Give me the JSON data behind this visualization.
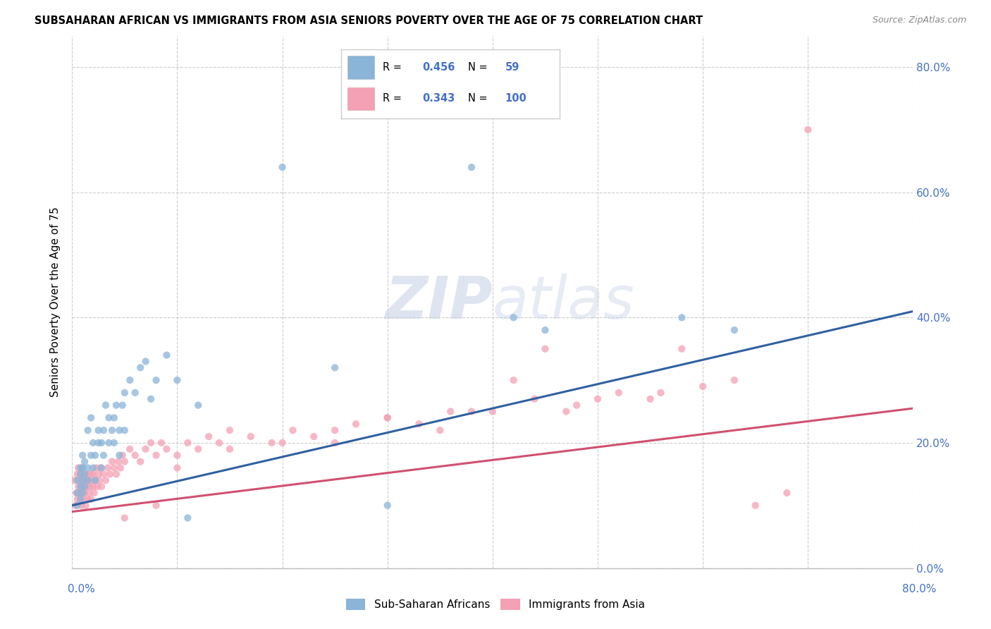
{
  "title": "SUBSAHARAN AFRICAN VS IMMIGRANTS FROM ASIA SENIORS POVERTY OVER THE AGE OF 75 CORRELATION CHART",
  "source": "Source: ZipAtlas.com",
  "ylabel": "Seniors Poverty Over the Age of 75",
  "xmin": 0.0,
  "xmax": 0.8,
  "ymin": 0.0,
  "ymax": 0.85,
  "ytick_vals": [
    0.0,
    0.2,
    0.4,
    0.6,
    0.8
  ],
  "ytick_labels": [
    "0.0%",
    "20.0%",
    "40.0%",
    "60.0%",
    "80.0%"
  ],
  "blue_R": 0.456,
  "blue_N": 59,
  "pink_R": 0.343,
  "pink_N": 100,
  "blue_color": "#8ab4d8",
  "pink_color": "#f4a0b5",
  "blue_line_color": "#3060a0",
  "pink_line_color": "#d05070",
  "watermark_zip": "ZIP",
  "watermark_atlas": "atlas",
  "legend_label_blue": "Sub-Saharan Africans",
  "legend_label_pink": "Immigrants from Asia",
  "blue_line_x0": 0.0,
  "blue_line_y0": 0.1,
  "blue_line_x1": 0.8,
  "blue_line_y1": 0.41,
  "pink_line_x0": 0.0,
  "pink_line_y0": 0.09,
  "pink_line_x1": 0.8,
  "pink_line_y1": 0.255,
  "blue_scatter_x": [
    0.005,
    0.005,
    0.005,
    0.008,
    0.008,
    0.008,
    0.008,
    0.01,
    0.01,
    0.01,
    0.01,
    0.012,
    0.012,
    0.012,
    0.015,
    0.015,
    0.015,
    0.018,
    0.018,
    0.02,
    0.02,
    0.022,
    0.022,
    0.025,
    0.025,
    0.028,
    0.028,
    0.03,
    0.03,
    0.032,
    0.035,
    0.035,
    0.038,
    0.04,
    0.04,
    0.042,
    0.045,
    0.045,
    0.048,
    0.05,
    0.05,
    0.055,
    0.06,
    0.065,
    0.07,
    0.075,
    0.08,
    0.09,
    0.1,
    0.11,
    0.12,
    0.2,
    0.25,
    0.3,
    0.38,
    0.42,
    0.45,
    0.58,
    0.63
  ],
  "blue_scatter_y": [
    0.14,
    0.12,
    0.1,
    0.16,
    0.13,
    0.11,
    0.15,
    0.14,
    0.16,
    0.12,
    0.18,
    0.15,
    0.13,
    0.17,
    0.16,
    0.22,
    0.14,
    0.18,
    0.24,
    0.16,
    0.2,
    0.18,
    0.14,
    0.22,
    0.2,
    0.2,
    0.16,
    0.22,
    0.18,
    0.26,
    0.2,
    0.24,
    0.22,
    0.24,
    0.2,
    0.26,
    0.22,
    0.18,
    0.26,
    0.22,
    0.28,
    0.3,
    0.28,
    0.32,
    0.33,
    0.27,
    0.3,
    0.34,
    0.3,
    0.08,
    0.26,
    0.64,
    0.32,
    0.1,
    0.64,
    0.4,
    0.38,
    0.4,
    0.38
  ],
  "pink_scatter_x": [
    0.002,
    0.003,
    0.004,
    0.005,
    0.005,
    0.006,
    0.006,
    0.007,
    0.007,
    0.008,
    0.008,
    0.009,
    0.009,
    0.01,
    0.01,
    0.01,
    0.011,
    0.011,
    0.012,
    0.012,
    0.013,
    0.013,
    0.014,
    0.015,
    0.015,
    0.016,
    0.016,
    0.017,
    0.018,
    0.018,
    0.019,
    0.02,
    0.02,
    0.021,
    0.022,
    0.023,
    0.024,
    0.025,
    0.026,
    0.027,
    0.028,
    0.03,
    0.032,
    0.034,
    0.036,
    0.038,
    0.04,
    0.042,
    0.044,
    0.046,
    0.048,
    0.05,
    0.055,
    0.06,
    0.065,
    0.07,
    0.075,
    0.08,
    0.085,
    0.09,
    0.1,
    0.11,
    0.12,
    0.13,
    0.14,
    0.15,
    0.17,
    0.19,
    0.21,
    0.23,
    0.25,
    0.27,
    0.3,
    0.33,
    0.36,
    0.4,
    0.44,
    0.48,
    0.52,
    0.56,
    0.6,
    0.63,
    0.25,
    0.35,
    0.45,
    0.38,
    0.3,
    0.2,
    0.15,
    0.1,
    0.58,
    0.5,
    0.42,
    0.65,
    0.68,
    0.7,
    0.55,
    0.47,
    0.08,
    0.05
  ],
  "pink_scatter_y": [
    0.14,
    0.1,
    0.12,
    0.15,
    0.11,
    0.13,
    0.16,
    0.12,
    0.14,
    0.11,
    0.15,
    0.13,
    0.1,
    0.14,
    0.12,
    0.16,
    0.13,
    0.11,
    0.15,
    0.12,
    0.14,
    0.1,
    0.13,
    0.15,
    0.11,
    0.14,
    0.12,
    0.13,
    0.15,
    0.11,
    0.14,
    0.13,
    0.15,
    0.12,
    0.14,
    0.16,
    0.13,
    0.15,
    0.14,
    0.16,
    0.13,
    0.15,
    0.14,
    0.16,
    0.15,
    0.17,
    0.16,
    0.15,
    0.17,
    0.16,
    0.18,
    0.17,
    0.19,
    0.18,
    0.17,
    0.19,
    0.2,
    0.18,
    0.2,
    0.19,
    0.18,
    0.2,
    0.19,
    0.21,
    0.2,
    0.22,
    0.21,
    0.2,
    0.22,
    0.21,
    0.22,
    0.23,
    0.24,
    0.23,
    0.25,
    0.25,
    0.27,
    0.26,
    0.28,
    0.28,
    0.29,
    0.3,
    0.2,
    0.22,
    0.35,
    0.25,
    0.24,
    0.2,
    0.19,
    0.16,
    0.35,
    0.27,
    0.3,
    0.1,
    0.12,
    0.7,
    0.27,
    0.25,
    0.1,
    0.08
  ]
}
